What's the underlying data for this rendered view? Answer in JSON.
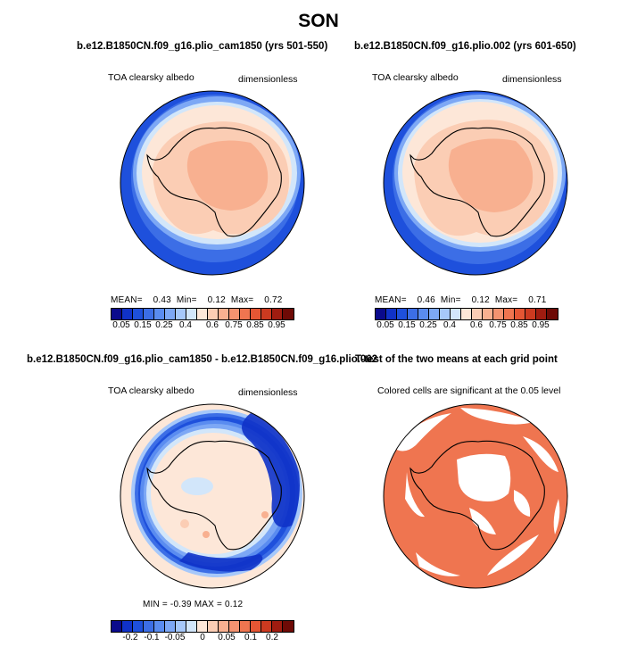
{
  "title": "SON",
  "panels": [
    {
      "id": "top-left",
      "case_title": "b.e12.B1850CN.f09_g16.plio_cam1850 (yrs 501-550)",
      "left_label": "TOA clearsky albedo",
      "right_label": "dimensionless",
      "stats": {
        "mean_label": "MEAN=",
        "mean": "0.43",
        "min_label": "Min=",
        "min": "0.12",
        "max_label": "Max=",
        "max": "0.72"
      }
    },
    {
      "id": "top-right",
      "case_title": "b.e12.B1850CN.f09_g16.plio.002 (yrs 601-650)",
      "left_label": "TOA clearsky albedo",
      "right_label": "dimensionless",
      "stats": {
        "mean_label": "MEAN=",
        "mean": "0.46",
        "min_label": "Min=",
        "min": "0.12",
        "max_label": "Max=",
        "max": "0.71"
      }
    },
    {
      "id": "bottom-left",
      "case_title": "b.e12.B1850CN.f09_g16.plio_cam1850 - b.e12.B1850CN.f09_g16.plio.002",
      "left_label": "TOA clearsky albedo",
      "right_label": "dimensionless",
      "stats_text": "MIN =  -0.39  MAX =   0.12"
    },
    {
      "id": "bottom-right",
      "case_title": "T-test of the two means at each grid point",
      "left_label": "Colored cells are significant at the 0.05 level"
    }
  ],
  "colorbars": {
    "absolute": {
      "colors": [
        "#0a0a8c",
        "#1032c8",
        "#1e50dc",
        "#3c6ee6",
        "#5a8cf0",
        "#7da8f5",
        "#a6c8fa",
        "#d2e6fa",
        "#fde7d8",
        "#fbcdb4",
        "#f8b090",
        "#f49370",
        "#ef7550",
        "#e45634",
        "#cc3a20",
        "#a01c10",
        "#6e0a06"
      ],
      "ticks": [
        "0.05",
        "0.15",
        "0.25",
        "0.4",
        "0.6",
        "0.75",
        "0.85",
        "0.95"
      ]
    },
    "difference": {
      "colors": [
        "#0a0a8c",
        "#1032c8",
        "#1e50dc",
        "#3c6ee6",
        "#5a8cf0",
        "#7da8f5",
        "#a6c8fa",
        "#d2e6fa",
        "#fde7d8",
        "#fbcdb4",
        "#f8b090",
        "#f49370",
        "#ef7550",
        "#e45634",
        "#cc3a20",
        "#a01c10",
        "#6e0a06"
      ],
      "ticks": [
        "-0.2",
        "-0.1",
        "-0.05",
        "0",
        "0.05",
        "0.1",
        "0.2"
      ]
    }
  },
  "chart_data": {
    "type": "heatmap",
    "projection": "south polar stereographic",
    "season": "SON",
    "variable": "TOA clearsky albedo",
    "units": "dimensionless",
    "absolute_levels": [
      0.05,
      0.1,
      0.15,
      0.2,
      0.25,
      0.3,
      0.35,
      0.4,
      0.5,
      0.6,
      0.65,
      0.7,
      0.75,
      0.8,
      0.85,
      0.9,
      0.95
    ],
    "difference_levels": [
      -0.2,
      -0.15,
      -0.1,
      -0.08,
      -0.05,
      -0.03,
      -0.01,
      0,
      0.01,
      0.03,
      0.05,
      0.08,
      0.1,
      0.15,
      0.2
    ],
    "case1": {
      "name": "b.e12.B1850CN.f09_g16.plio_cam1850",
      "years": "501-550",
      "mean": 0.43,
      "min": 0.12,
      "max": 0.72
    },
    "case2": {
      "name": "b.e12.B1850CN.f09_g16.plio.002",
      "years": "601-650",
      "mean": 0.46,
      "min": 0.12,
      "max": 0.71
    },
    "difference": {
      "min": -0.39,
      "max": 0.12
    },
    "ttest_significance_level": 0.05
  }
}
